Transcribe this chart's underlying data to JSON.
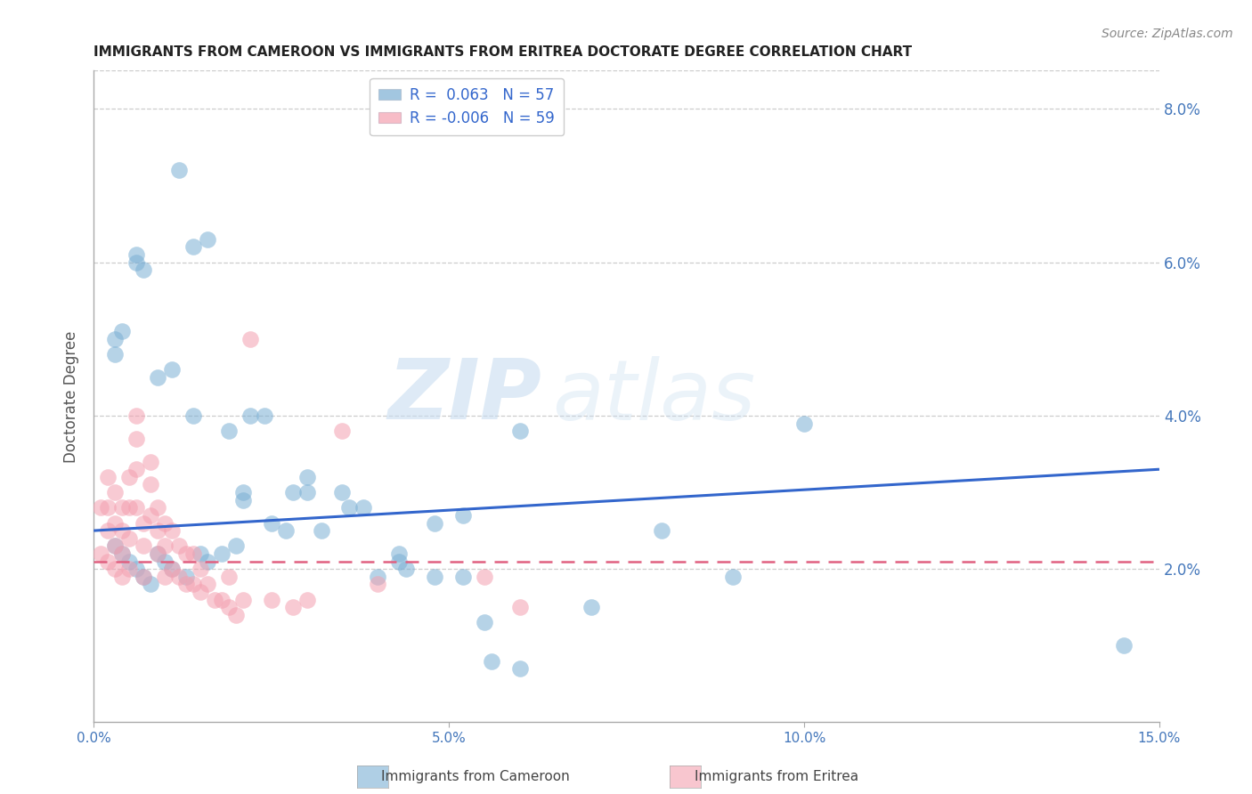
{
  "title": "IMMIGRANTS FROM CAMEROON VS IMMIGRANTS FROM ERITREA DOCTORATE DEGREE CORRELATION CHART",
  "source": "Source: ZipAtlas.com",
  "ylabel": "Doctorate Degree",
  "xlim": [
    0.0,
    0.15
  ],
  "ylim": [
    0.0,
    0.085
  ],
  "cameroon_color": "#7bafd4",
  "eritrea_color": "#f4a0b0",
  "cameroon_label": "Immigrants from Cameroon",
  "eritrea_label": "Immigrants from Eritrea",
  "cameroon_R": "0.063",
  "cameroon_N": "57",
  "eritrea_R": "-0.006",
  "eritrea_N": "59",
  "watermark_zip": "ZIP",
  "watermark_atlas": "atlas",
  "cam_trend_x0": 0.0,
  "cam_trend_y0": 0.025,
  "cam_trend_x1": 0.15,
  "cam_trend_y1": 0.033,
  "eri_trend_x0": 0.0,
  "eri_trend_y0": 0.021,
  "eri_trend_x1": 0.15,
  "eri_trend_y1": 0.021,
  "cam_x": [
    0.012,
    0.014,
    0.016,
    0.006,
    0.006,
    0.007,
    0.003,
    0.003,
    0.004,
    0.009,
    0.011,
    0.014,
    0.019,
    0.022,
    0.024,
    0.021,
    0.021,
    0.028,
    0.03,
    0.035,
    0.038,
    0.043,
    0.043,
    0.048,
    0.052,
    0.06,
    0.1,
    0.003,
    0.004,
    0.005,
    0.006,
    0.007,
    0.008,
    0.009,
    0.01,
    0.011,
    0.013,
    0.015,
    0.016,
    0.018,
    0.02,
    0.025,
    0.027,
    0.03,
    0.032,
    0.036,
    0.04,
    0.044,
    0.048,
    0.052,
    0.056,
    0.06,
    0.07,
    0.08,
    0.09,
    0.145,
    0.055
  ],
  "cam_y": [
    0.072,
    0.062,
    0.063,
    0.061,
    0.06,
    0.059,
    0.048,
    0.05,
    0.051,
    0.045,
    0.046,
    0.04,
    0.038,
    0.04,
    0.04,
    0.03,
    0.029,
    0.03,
    0.032,
    0.03,
    0.028,
    0.022,
    0.021,
    0.026,
    0.027,
    0.038,
    0.039,
    0.023,
    0.022,
    0.021,
    0.02,
    0.019,
    0.018,
    0.022,
    0.021,
    0.02,
    0.019,
    0.022,
    0.021,
    0.022,
    0.023,
    0.026,
    0.025,
    0.03,
    0.025,
    0.028,
    0.019,
    0.02,
    0.019,
    0.019,
    0.008,
    0.007,
    0.015,
    0.025,
    0.019,
    0.01,
    0.013
  ],
  "eri_x": [
    0.001,
    0.001,
    0.002,
    0.002,
    0.002,
    0.002,
    0.003,
    0.003,
    0.003,
    0.003,
    0.004,
    0.004,
    0.004,
    0.004,
    0.005,
    0.005,
    0.005,
    0.005,
    0.006,
    0.006,
    0.006,
    0.006,
    0.007,
    0.007,
    0.007,
    0.008,
    0.008,
    0.008,
    0.009,
    0.009,
    0.009,
    0.01,
    0.01,
    0.01,
    0.011,
    0.011,
    0.012,
    0.012,
    0.013,
    0.013,
    0.014,
    0.014,
    0.015,
    0.015,
    0.016,
    0.017,
    0.018,
    0.019,
    0.019,
    0.02,
    0.021,
    0.022,
    0.025,
    0.028,
    0.03,
    0.035,
    0.04,
    0.055,
    0.06
  ],
  "eri_y": [
    0.028,
    0.022,
    0.032,
    0.028,
    0.025,
    0.021,
    0.03,
    0.026,
    0.023,
    0.02,
    0.028,
    0.025,
    0.022,
    0.019,
    0.032,
    0.028,
    0.024,
    0.02,
    0.04,
    0.037,
    0.033,
    0.028,
    0.026,
    0.023,
    0.019,
    0.034,
    0.031,
    0.027,
    0.028,
    0.025,
    0.022,
    0.026,
    0.023,
    0.019,
    0.025,
    0.02,
    0.023,
    0.019,
    0.022,
    0.018,
    0.022,
    0.018,
    0.02,
    0.017,
    0.018,
    0.016,
    0.016,
    0.015,
    0.019,
    0.014,
    0.016,
    0.05,
    0.016,
    0.015,
    0.016,
    0.038,
    0.018,
    0.019,
    0.015
  ]
}
